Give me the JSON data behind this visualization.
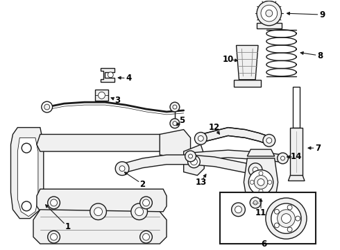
{
  "background_color": "#ffffff",
  "line_color": "#1a1a1a",
  "fig_width": 4.9,
  "fig_height": 3.6,
  "dpi": 100,
  "label_fontsize": 8.5,
  "label_fontweight": "bold",
  "lw_main": 1.0,
  "lw_thin": 0.6
}
